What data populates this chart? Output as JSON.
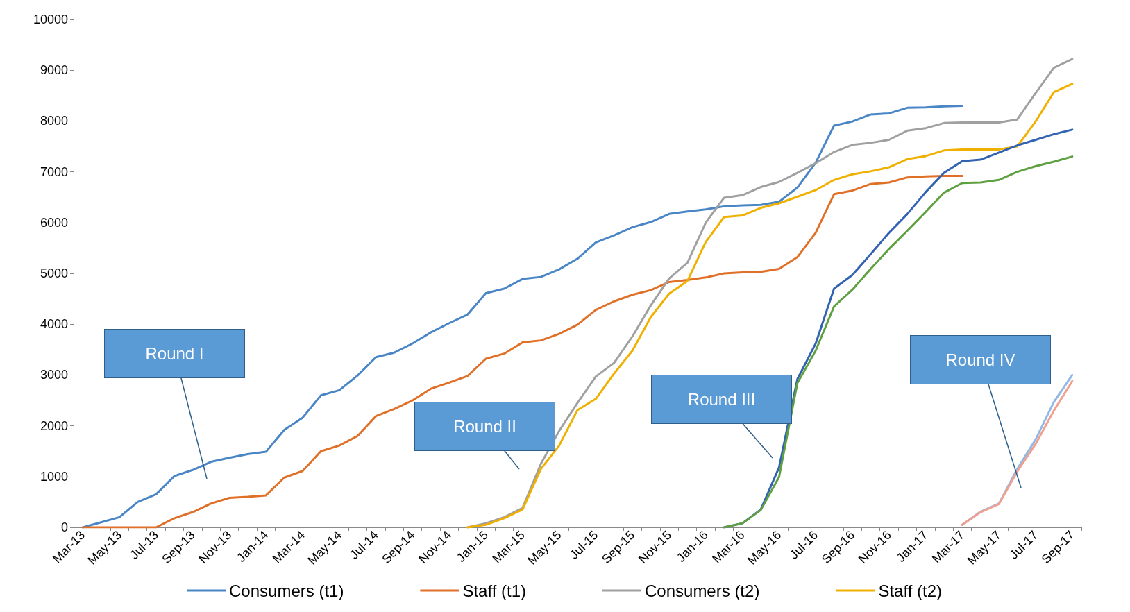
{
  "chart_data": {
    "type": "line",
    "categories": [
      "Mar-13",
      null,
      "May-13",
      null,
      "Jul-13",
      null,
      "Sep-13",
      null,
      "Nov-13",
      null,
      "Jan-14",
      null,
      "Mar-14",
      null,
      "May-14",
      null,
      "Jul-14",
      null,
      "Sep-14",
      null,
      "Nov-14",
      null,
      "Jan-15",
      null,
      "Mar-15",
      null,
      "May-15",
      null,
      "Jul-15",
      null,
      "Sep-15",
      null,
      "Nov-15",
      null,
      "Jan-16",
      null,
      "Mar-16",
      null,
      "May-16",
      null,
      "Jul-16",
      null,
      "Sep-16",
      null,
      "Nov-16",
      null,
      "Jan-17",
      null,
      "Mar-17",
      null,
      "May-17",
      null,
      "Jul-17",
      null,
      "Sep-17"
    ],
    "series": [
      {
        "name": "Consumers (t1)",
        "color": "#4a86c5",
        "values": [
          0,
          100,
          200,
          500,
          650,
          1010,
          1130,
          1290,
          1370,
          1440,
          1490,
          1920,
          2160,
          2600,
          2700,
          2990,
          3350,
          3440,
          3620,
          3840,
          4020,
          4190,
          4610,
          4700,
          4890,
          4930,
          5080,
          5290,
          5610,
          5750,
          5910,
          6010,
          6170,
          6220,
          6260,
          6320,
          6340,
          6350,
          6410,
          6690,
          7180,
          7910,
          7990,
          8130,
          8150,
          8260,
          8270,
          8290,
          8300,
          null,
          null,
          null,
          null,
          null,
          null
        ]
      },
      {
        "name": "Staff (t1)",
        "color": "#e07028",
        "values": [
          0,
          0,
          0,
          0,
          0,
          180,
          300,
          470,
          580,
          600,
          630,
          980,
          1110,
          1500,
          1610,
          1800,
          2190,
          2330,
          2500,
          2730,
          2850,
          2980,
          3320,
          3420,
          3640,
          3680,
          3810,
          3990,
          4280,
          4450,
          4580,
          4670,
          4830,
          4870,
          4920,
          5000,
          5020,
          5030,
          5090,
          5320,
          5800,
          6560,
          6630,
          6760,
          6790,
          6890,
          6910,
          6920,
          6920,
          null,
          null,
          null,
          null,
          null,
          null
        ]
      },
      {
        "name": "Consumers (t2)",
        "color": "#a0a0a0",
        "values": [
          null,
          null,
          null,
          null,
          null,
          null,
          null,
          null,
          null,
          null,
          null,
          null,
          null,
          null,
          null,
          null,
          null,
          null,
          null,
          null,
          null,
          0,
          80,
          200,
          380,
          1250,
          1900,
          2450,
          2970,
          3240,
          3760,
          4370,
          4900,
          5210,
          6000,
          6490,
          6540,
          6700,
          6800,
          6980,
          7170,
          7390,
          7530,
          7570,
          7630,
          7810,
          7860,
          7960,
          7970,
          7970,
          7970,
          8030,
          8550,
          9050,
          9220
        ]
      },
      {
        "name": "Staff (t2)",
        "color": "#f0b000",
        "values": [
          null,
          null,
          null,
          null,
          null,
          null,
          null,
          null,
          null,
          null,
          null,
          null,
          null,
          null,
          null,
          null,
          null,
          null,
          null,
          null,
          null,
          0,
          50,
          180,
          350,
          1150,
          1610,
          2310,
          2530,
          3030,
          3480,
          4140,
          4600,
          4850,
          5620,
          6110,
          6140,
          6290,
          6380,
          6510,
          6640,
          6840,
          6950,
          7010,
          7090,
          7250,
          7310,
          7420,
          7440,
          7440,
          7440,
          7500,
          7990,
          8570,
          8730
        ]
      },
      {
        "color": "#3262b2",
        "values": [
          null,
          null,
          null,
          null,
          null,
          null,
          null,
          null,
          null,
          null,
          null,
          null,
          null,
          null,
          null,
          null,
          null,
          null,
          null,
          null,
          null,
          null,
          null,
          null,
          null,
          null,
          null,
          null,
          null,
          null,
          null,
          null,
          null,
          null,
          null,
          0,
          80,
          350,
          1180,
          2920,
          3620,
          4700,
          4970,
          5380,
          5800,
          6170,
          6600,
          6980,
          7210,
          7240,
          7380,
          7520,
          7630,
          7740,
          7830
        ]
      },
      {
        "color": "#5fa040",
        "values": [
          null,
          null,
          null,
          null,
          null,
          null,
          null,
          null,
          null,
          null,
          null,
          null,
          null,
          null,
          null,
          null,
          null,
          null,
          null,
          null,
          null,
          null,
          null,
          null,
          null,
          null,
          null,
          null,
          null,
          null,
          null,
          null,
          null,
          null,
          null,
          0,
          80,
          340,
          990,
          2840,
          3480,
          4350,
          4680,
          5090,
          5480,
          5840,
          6210,
          6590,
          6780,
          6790,
          6840,
          7000,
          7110,
          7200,
          7300
        ]
      },
      {
        "color": "#92b9e6",
        "values": [
          null,
          null,
          null,
          null,
          null,
          null,
          null,
          null,
          null,
          null,
          null,
          null,
          null,
          null,
          null,
          null,
          null,
          null,
          null,
          null,
          null,
          null,
          null,
          null,
          null,
          null,
          null,
          null,
          null,
          null,
          null,
          null,
          null,
          null,
          null,
          null,
          null,
          null,
          null,
          null,
          null,
          null,
          null,
          null,
          null,
          null,
          null,
          null,
          50,
          310,
          470,
          1150,
          1730,
          2470,
          3000
        ]
      },
      {
        "color": "#f0a090",
        "values": [
          null,
          null,
          null,
          null,
          null,
          null,
          null,
          null,
          null,
          null,
          null,
          null,
          null,
          null,
          null,
          null,
          null,
          null,
          null,
          null,
          null,
          null,
          null,
          null,
          null,
          null,
          null,
          null,
          null,
          null,
          null,
          null,
          null,
          null,
          null,
          null,
          null,
          null,
          null,
          null,
          null,
          null,
          null,
          null,
          null,
          null,
          null,
          null,
          50,
          300,
          460,
          1100,
          1640,
          2300,
          2880
        ]
      }
    ],
    "ylim": [
      0,
      10000
    ],
    "yticks": [
      0,
      1000,
      2000,
      3000,
      4000,
      5000,
      6000,
      7000,
      8000,
      9000,
      10000
    ],
    "annotations": [
      "Round I",
      "Round II",
      "Round III",
      "Round IV"
    ],
    "grid": false,
    "legend": "bottom",
    "marker": "none",
    "line_style": "solid"
  }
}
